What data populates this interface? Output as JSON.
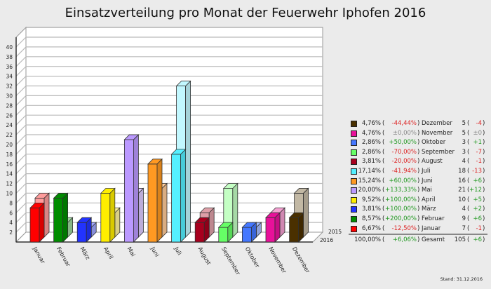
{
  "chart_data": {
    "type": "bar",
    "title": "Einsatzverteilung pro Monat der Feuerwehr Iphofen 2016",
    "categories": [
      "Januar",
      "Februar",
      "März",
      "April",
      "Mai",
      "Juni",
      "Juli",
      "August",
      "September",
      "Oktober",
      "November",
      "Dezember"
    ],
    "series": [
      {
        "name": "2016",
        "values": [
          7,
          9,
          4,
          10,
          21,
          16,
          18,
          4,
          3,
          3,
          5,
          5
        ]
      },
      {
        "name": "2015",
        "values": [
          8,
          3,
          2,
          5,
          9,
          10,
          31,
          5,
          10,
          2,
          5,
          9
        ]
      }
    ],
    "colors_2016": [
      "#ff0000",
      "#008c00",
      "#2233ff",
      "#ffee00",
      "#bb99ff",
      "#ff9922",
      "#55f0ff",
      "#a8001e",
      "#66ff66",
      "#4477ff",
      "#e8119a",
      "#4a3000"
    ],
    "colors_2015": [
      "#ff9c9c",
      "#9ed69e",
      "#a0a8ff",
      "#fff59c",
      "#ddccff",
      "#ffcc99",
      "#c2f8ff",
      "#dea0a8",
      "#c4ffc4",
      "#a6bdff",
      "#f5a0d2",
      "#c2b8a4"
    ],
    "yticks": [
      2,
      4,
      6,
      8,
      10,
      12,
      14,
      16,
      18,
      20,
      22,
      24,
      26,
      28,
      30,
      32,
      34,
      36,
      38,
      40
    ],
    "ylim": [
      0,
      42
    ],
    "grid": true,
    "legend_position": "right",
    "style": "3d"
  },
  "legend": {
    "rows": [
      {
        "color": "#4a3000",
        "pct": "4,76%",
        "change": "-44,44%",
        "sign": "neg",
        "month": "Dezember",
        "count": "5",
        "diff": "-4"
      },
      {
        "color": "#e8119a",
        "pct": "4,76%",
        "change": "±0,00%",
        "sign": "zero",
        "month": "November",
        "count": "5",
        "diff": "±0"
      },
      {
        "color": "#4477ff",
        "pct": "2,86%",
        "change": "+50,00%",
        "sign": "pos",
        "month": "Oktober",
        "count": "3",
        "diff": "+1"
      },
      {
        "color": "#66ff66",
        "pct": "2,86%",
        "change": "-70,00%",
        "sign": "neg",
        "month": "September",
        "count": "3",
        "diff": "-7"
      },
      {
        "color": "#a8001e",
        "pct": "3,81%",
        "change": "-20,00%",
        "sign": "neg",
        "month": "August",
        "count": "4",
        "diff": "-1"
      },
      {
        "color": "#55f0ff",
        "pct": "17,14%",
        "change": "-41,94%",
        "sign": "neg",
        "month": "Juli",
        "count": "18",
        "diff": "-13"
      },
      {
        "color": "#ff9922",
        "pct": "15,24%",
        "change": "+60,00%",
        "sign": "pos",
        "month": "Juni",
        "count": "16",
        "diff": "+6"
      },
      {
        "color": "#bb99ff",
        "pct": "20,00%",
        "change": "+133,33%",
        "sign": "pos",
        "month": "Mai",
        "count": "21",
        "diff": "+12"
      },
      {
        "color": "#ffee00",
        "pct": "9,52%",
        "change": "+100,00%",
        "sign": "pos",
        "month": "April",
        "count": "10",
        "diff": "+5"
      },
      {
        "color": "#2233ff",
        "pct": "3,81%",
        "change": "+100,00%",
        "sign": "pos",
        "month": "März",
        "count": "4",
        "diff": "+2"
      },
      {
        "color": "#008c00",
        "pct": "8,57%",
        "change": "+200,00%",
        "sign": "pos",
        "month": "Februar",
        "count": "9",
        "diff": "+6"
      },
      {
        "color": "#ff0000",
        "pct": "6,67%",
        "change": "-12,50%",
        "sign": "neg",
        "month": "Januar",
        "count": "7",
        "diff": "-1"
      }
    ],
    "total": {
      "pct": "100,00%",
      "change": "+6,06%",
      "sign": "pos",
      "month": "Gesamt",
      "count": "105",
      "diff": "+6"
    },
    "sign_colors": {
      "pos": "#229922",
      "neg": "#dd2222",
      "zero": "#888888"
    }
  },
  "footer": {
    "stand": "Stand: 31.12.2016"
  }
}
